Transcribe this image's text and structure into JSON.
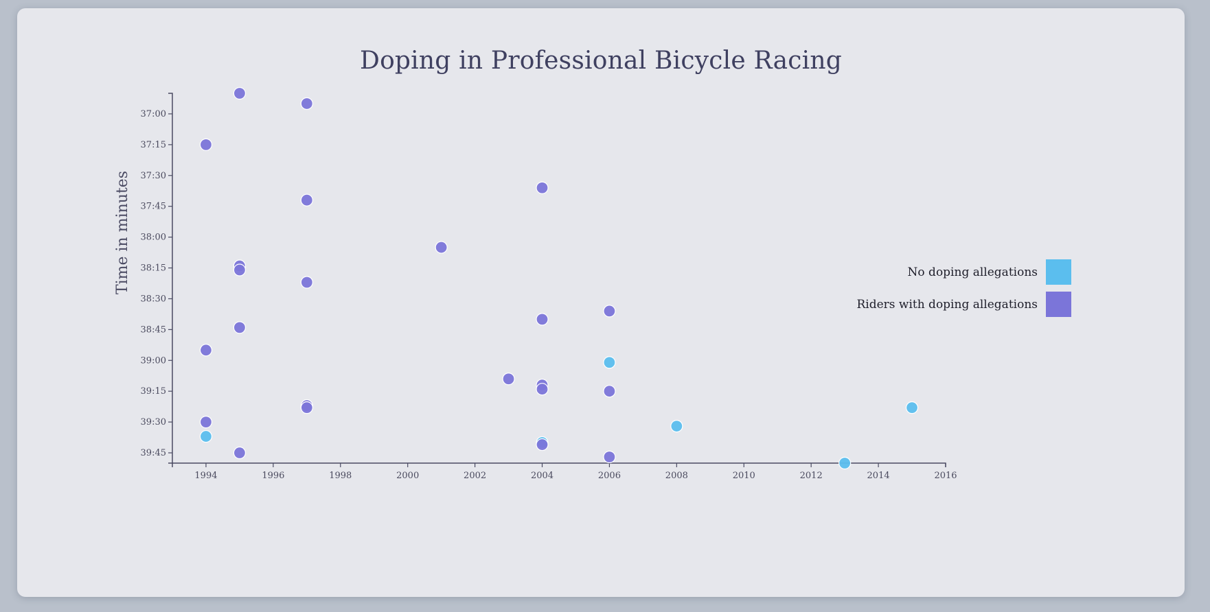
{
  "title": "Doping in Professional Bicycle Racing",
  "colors": {
    "no_doping": "#5bbeee",
    "doping": "#7b75d9",
    "doping_dark": "#6a5fd4"
  },
  "chart_data": {
    "type": "scatter",
    "title": "Doping in Professional Bicycle Racing",
    "xlabel": "",
    "ylabel": "Time in minutes",
    "xlim": [
      1993,
      2016
    ],
    "ylim": [
      "36:50",
      "39:50"
    ],
    "x_ticks": [
      "1994",
      "1996",
      "1998",
      "2000",
      "2002",
      "2004",
      "2006",
      "2008",
      "2010",
      "2012",
      "2014",
      "2016"
    ],
    "y_ticks": [
      "37:00",
      "37:15",
      "37:30",
      "37:45",
      "38:00",
      "38:15",
      "38:30",
      "38:45",
      "39:00",
      "39:15",
      "39:30",
      "39:45"
    ],
    "legend": {
      "position": "right",
      "entries": [
        "No doping allegations",
        "Riders with doping allegations"
      ]
    },
    "series": [
      {
        "name": "No doping allegations",
        "points": [
          {
            "x": 1994,
            "y": "39:37"
          },
          {
            "x": 2004,
            "y": "39:40"
          },
          {
            "x": 2006,
            "y": "39:01"
          },
          {
            "x": 2008,
            "y": "39:32"
          },
          {
            "x": 2013,
            "y": "39:50"
          },
          {
            "x": 2015,
            "y": "39:23"
          }
        ]
      },
      {
        "name": "Riders with doping allegations",
        "points": [
          {
            "x": 1995,
            "y": "36:50"
          },
          {
            "x": 1997,
            "y": "36:55"
          },
          {
            "x": 1994,
            "y": "37:15"
          },
          {
            "x": 2004,
            "y": "37:36"
          },
          {
            "x": 1997,
            "y": "37:42"
          },
          {
            "x": 2001,
            "y": "38:05"
          },
          {
            "x": 1995,
            "y": "38:14"
          },
          {
            "x": 1995,
            "y": "38:16"
          },
          {
            "x": 1997,
            "y": "38:22"
          },
          {
            "x": 2006,
            "y": "38:36"
          },
          {
            "x": 2004,
            "y": "38:40"
          },
          {
            "x": 1995,
            "y": "38:44"
          },
          {
            "x": 1994,
            "y": "38:55"
          },
          {
            "x": 2003,
            "y": "39:09"
          },
          {
            "x": 2004,
            "y": "39:12"
          },
          {
            "x": 2004,
            "y": "39:14"
          },
          {
            "x": 2006,
            "y": "39:15"
          },
          {
            "x": 1997,
            "y": "39:22"
          },
          {
            "x": 1997,
            "y": "39:23"
          },
          {
            "x": 1994,
            "y": "39:30"
          },
          {
            "x": 2004,
            "y": "39:41"
          },
          {
            "x": 1995,
            "y": "39:45"
          },
          {
            "x": 2006,
            "y": "39:47"
          }
        ]
      }
    ]
  }
}
